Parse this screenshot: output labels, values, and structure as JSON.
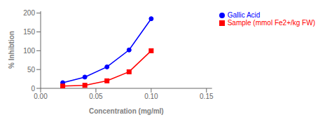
{
  "chart_data": {
    "type": "line",
    "x_label": "Concentration (mg/ml)",
    "y_label": "% Inhibtion",
    "xlim": [
      0.0,
      0.155
    ],
    "ylim": [
      0,
      205
    ],
    "xticks": [
      {
        "value": 0.0,
        "label": "0.00"
      },
      {
        "value": 0.05,
        "label": "0.05"
      },
      {
        "value": 0.1,
        "label": "0.10"
      },
      {
        "value": 0.15,
        "label": "0.15"
      }
    ],
    "yticks": [
      0,
      50,
      100,
      150,
      200
    ],
    "grid": false,
    "legend": "right",
    "series": [
      {
        "name": "Gallic Acid",
        "color": "#0000FF",
        "marker": "circle",
        "x": [
          0.02,
          0.04,
          0.06,
          0.08,
          0.1
        ],
        "values": [
          15,
          30,
          57,
          102,
          185
        ]
      },
      {
        "name": "Sample (mmol Fe2+/kg FW)",
        "color": "#FF0000",
        "marker": "square",
        "x": [
          0.02,
          0.04,
          0.06,
          0.08,
          0.1
        ],
        "values": [
          6,
          8,
          20,
          44,
          100
        ]
      }
    ]
  }
}
